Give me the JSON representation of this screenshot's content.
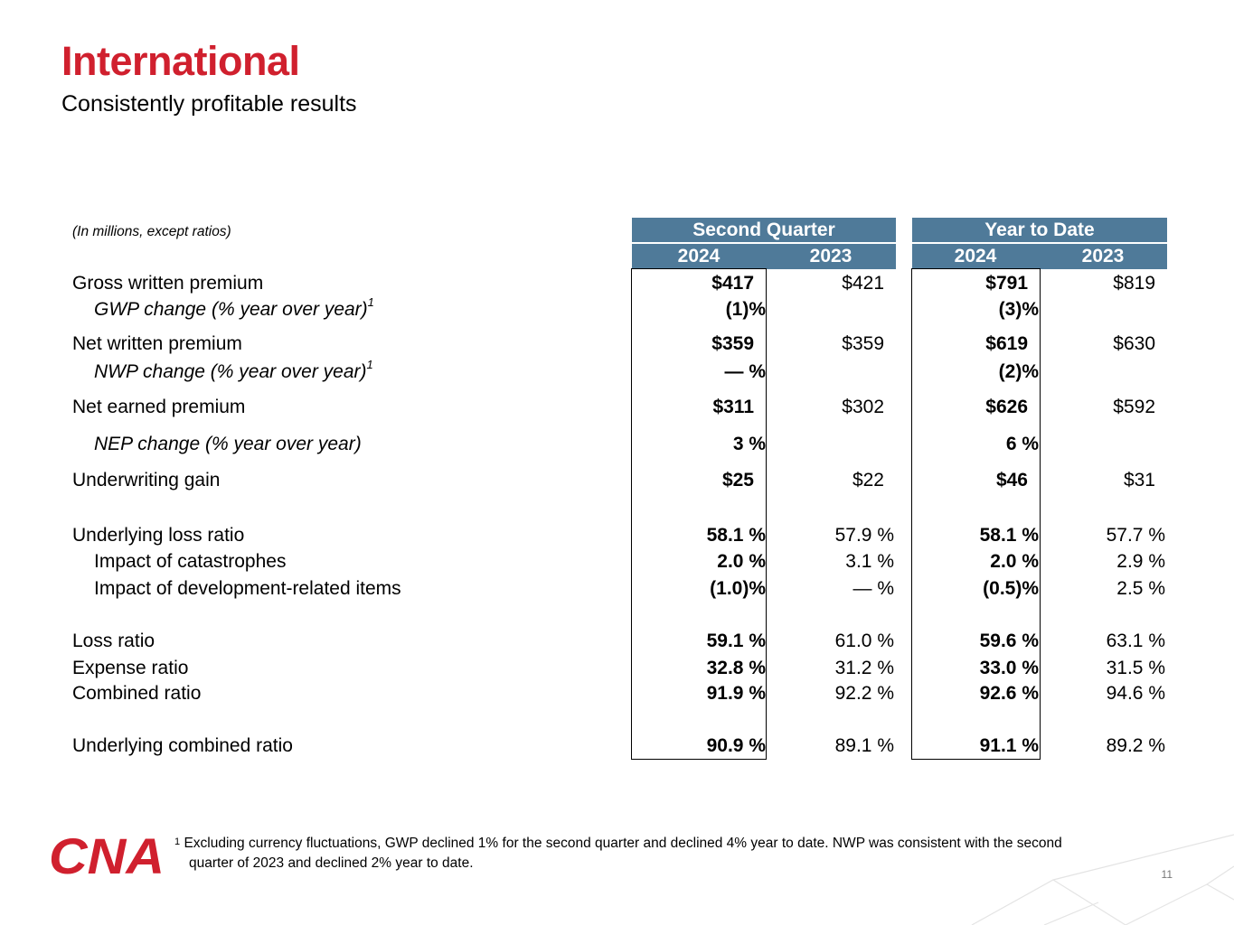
{
  "title": "International",
  "subtitle": "Consistently profitable results",
  "units_note": "(In millions, except ratios)",
  "header": {
    "group1": "Second Quarter",
    "group2": "Year to Date",
    "years": [
      "2024",
      "2023",
      "2024",
      "2023"
    ]
  },
  "rows": [
    {
      "label": "Gross written premium",
      "values": [
        "$417",
        "$421",
        "$791",
        "$819"
      ]
    },
    {
      "label": "GWP change (% year over year)",
      "sup": "1",
      "values": [
        "(1)%",
        "",
        "(3)%",
        ""
      ]
    },
    {
      "label": "Net written premium",
      "values": [
        "$359",
        "$359",
        "$619",
        "$630"
      ]
    },
    {
      "label": "NWP change (% year over year)",
      "sup": "1",
      "values": [
        "— %",
        "",
        "(2)%",
        ""
      ]
    },
    {
      "label": "Net earned premium",
      "values": [
        "$311",
        "$302",
        "$626",
        "$592"
      ]
    },
    {
      "label": "NEP change (% year over year)",
      "values": [
        "3 %",
        "",
        "6 %",
        ""
      ]
    },
    {
      "label": "Underwriting gain",
      "values": [
        "$25",
        "$22",
        "$46",
        "$31"
      ]
    },
    {
      "label": "Underlying loss ratio",
      "values": [
        "58.1 %",
        "57.9 %",
        "58.1 %",
        "57.7 %"
      ]
    },
    {
      "label": "Impact of catastrophes",
      "values": [
        "2.0 %",
        "3.1 %",
        "2.0 %",
        "2.9 %"
      ]
    },
    {
      "label": "Impact of development-related items",
      "values": [
        "(1.0)%",
        "— %",
        "(0.5)%",
        "2.5 %"
      ]
    },
    {
      "label": "Loss ratio",
      "values": [
        "59.1 %",
        "61.0 %",
        "59.6 %",
        "63.1 %"
      ]
    },
    {
      "label": "Expense ratio",
      "values": [
        "32.8 %",
        "31.2 %",
        "33.0 %",
        "31.5 %"
      ]
    },
    {
      "label": "Combined ratio",
      "values": [
        "91.9 %",
        "92.2 %",
        "92.6 %",
        "94.6 %"
      ]
    },
    {
      "label": "Underlying combined ratio",
      "values": [
        "90.9 %",
        "89.1 %",
        "91.1 %",
        "89.2 %"
      ]
    }
  ],
  "footnote": {
    "marker": "1",
    "line1": "Excluding currency fluctuations, GWP declined 1% for the second quarter and declined 4% year to date.  NWP was consistent with the second",
    "line2": "quarter of 2023 and declined 2% year to date."
  },
  "logo_text": "CNA",
  "logo_color": "#d0202e",
  "header_color": "#4f7a99",
  "page_number": "11"
}
